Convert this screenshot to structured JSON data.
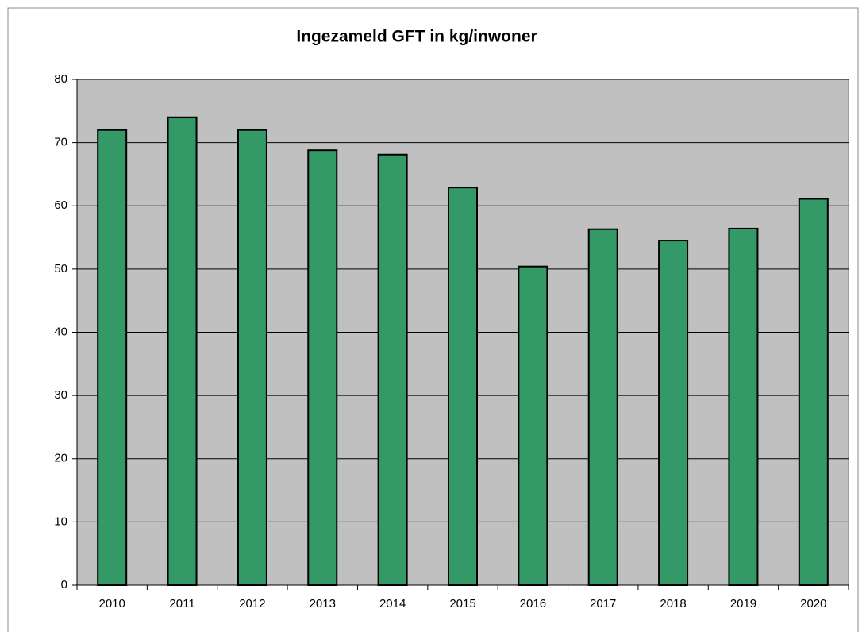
{
  "chart_data": {
    "type": "bar",
    "title": "Ingezameld GFT in kg/inwoner",
    "categories": [
      "2010",
      "2011",
      "2012",
      "2013",
      "2014",
      "2015",
      "2016",
      "2017",
      "2018",
      "2019",
      "2020"
    ],
    "values": [
      72.0,
      74.0,
      72.0,
      68.8,
      68.1,
      62.9,
      50.4,
      56.3,
      54.5,
      56.4,
      61.1
    ],
    "color": "#339966",
    "ylim": [
      0,
      80
    ],
    "yticks": [
      0,
      10,
      20,
      30,
      40,
      50,
      60,
      70,
      80
    ],
    "grid": true
  }
}
